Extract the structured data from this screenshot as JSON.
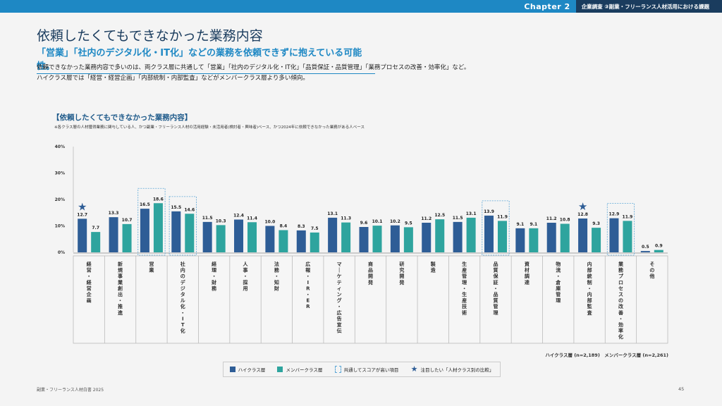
{
  "header": {
    "chapter": "Chapter 2",
    "section": "企業調査 ③副業・フリーランス人材活用における課題"
  },
  "page": {
    "title": "依頼したくてもできなかった業務内容",
    "subtitle": "「営業」「社内のデジタル化・IT化」などの業務を依頼できずに抱えている可能性。",
    "desc_line1": "依頼できなかった業務内容で多いのは、両クラス層に共通して「営業」「社内のデジタル化・IT化」「品質保証・品質管理」「業務プロセスの改善・効率化」など。",
    "desc_line2": "ハイクラス層では「経営・経営企画」「内部統制・内部監査」などがメンバークラス層より多い傾向。"
  },
  "chart_data": {
    "type": "bar",
    "title": "【依頼したくてもできなかった業務内容】",
    "note": "※各クラス層の人材獲得業務に関与している人、かつ副業・フリーランス人材の活用経験・未活用者(検討者・興味者)ベース、かつ2024年に依頼できなかった業務がある人ベース",
    "ylim": [
      0,
      40
    ],
    "yticks": [
      "0%",
      "10%",
      "20%",
      "30%",
      "40%"
    ],
    "ytick_values": [
      0,
      10,
      20,
      30,
      40
    ],
    "categories": [
      "経営・経営企画",
      "新規事業創出・推進",
      "営業",
      "社内のデジタル化・IT化",
      "経理・財務",
      "人事・採用",
      "法務・知財",
      "広報・IR・ER",
      "マーケティング・広告宣伝",
      "商品開発",
      "研究開発",
      "製造",
      "生産管理・生産技術",
      "品質保証・品質管理",
      "資材調達",
      "物流・倉庫管理",
      "内部統制・内部監査",
      "業務プロセスの改善・効率化",
      "その他"
    ],
    "series": [
      {
        "name": "ハイクラス層",
        "color": "#2e5d96",
        "values": [
          12.7,
          13.3,
          16.5,
          15.5,
          11.5,
          12.4,
          10.0,
          8.3,
          13.1,
          9.6,
          10.2,
          11.2,
          11.5,
          13.9,
          9.1,
          11.2,
          12.8,
          12.9,
          0.5
        ]
      },
      {
        "name": "メンバークラス層",
        "color": "#2ea49e",
        "values": [
          7.7,
          10.7,
          18.6,
          14.6,
          10.3,
          11.4,
          8.4,
          7.5,
          11.3,
          10.1,
          9.5,
          12.5,
          13.1,
          11.9,
          9.1,
          10.8,
          9.3,
          11.9,
          0.9
        ]
      }
    ],
    "highlight_common": [
      2,
      3,
      13,
      17
    ],
    "star_items": [
      0,
      16
    ],
    "sample_sizes": "ハイクラス層 (n=2,189)　メンバークラス層 (n=2,261)",
    "legend": {
      "high": "ハイクラス層",
      "member": "メンバークラス層",
      "common": "共通してスコアが高い項目",
      "star": "注目したい「人材クラス別の比較」"
    },
    "legend_placement": "bottom-center"
  },
  "footer": {
    "left": "副業・フリーランス人材白書 2025",
    "page_number": "45"
  }
}
